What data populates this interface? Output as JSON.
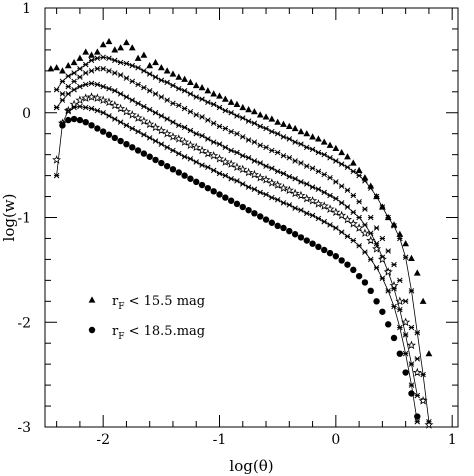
{
  "chart_data": {
    "type": "scatter",
    "xlabel": "log(θ)",
    "ylabel": "log(w)",
    "xlim": [
      -2.5,
      1.05
    ],
    "ylim": [
      -3,
      1
    ],
    "x_ticks": [
      "-2",
      "-1",
      "0",
      "1"
    ],
    "y_ticks": [
      "1",
      "0",
      "-1",
      "-2",
      "-3"
    ],
    "grid": false,
    "legend_position": "lower-left",
    "legend": [
      {
        "marker": "triangle",
        "label": "r<sub>F</sub> < 15.5 mag",
        "text_main": "r",
        "text_sub": "F",
        "text_rest": " < 15.5 mag"
      },
      {
        "marker": "circle",
        "label": "r<sub>F</sub> < 18.5.mag",
        "text_main": "r",
        "text_sub": "F",
        "text_rest": " < 18.5.mag"
      }
    ],
    "series": [
      {
        "marker": "triangle",
        "line": false,
        "x": [
          -2.45,
          -2.4,
          -2.35,
          -2.3,
          -2.25,
          -2.2,
          -2.15,
          -2.1,
          -2.05,
          -2.0,
          -1.95,
          -1.9,
          -1.85,
          -1.8,
          -1.75,
          -1.7,
          -1.65,
          -1.6,
          -1.55,
          -1.5,
          -1.45,
          -1.4,
          -1.35,
          -1.3,
          -1.25,
          -1.2,
          -1.15,
          -1.1,
          -1.05,
          -1.0,
          -0.95,
          -0.9,
          -0.85,
          -0.8,
          -0.75,
          -0.7,
          -0.65,
          -0.6,
          -0.55,
          -0.5,
          -0.45,
          -0.4,
          -0.35,
          -0.3,
          -0.25,
          -0.2,
          -0.15,
          -0.1,
          -0.05,
          0.0,
          0.05,
          0.1,
          0.15,
          0.2,
          0.25,
          0.3,
          0.35,
          0.4,
          0.45,
          0.5,
          0.55,
          0.6,
          0.65,
          0.7,
          0.75,
          0.8
        ],
        "y": [
          0.42,
          0.43,
          0.4,
          0.45,
          0.48,
          0.52,
          0.58,
          0.55,
          0.58,
          0.65,
          0.68,
          0.6,
          0.62,
          0.67,
          0.62,
          0.52,
          0.55,
          0.45,
          0.48,
          0.43,
          0.4,
          0.37,
          0.34,
          0.32,
          0.29,
          0.26,
          0.24,
          0.21,
          0.18,
          0.16,
          0.13,
          0.1,
          0.08,
          0.05,
          0.03,
          0.01,
          -0.02,
          -0.04,
          -0.06,
          -0.09,
          -0.11,
          -0.13,
          -0.15,
          -0.18,
          -0.2,
          -0.23,
          -0.25,
          -0.28,
          -0.31,
          -0.34,
          -0.38,
          -0.42,
          -0.48,
          -0.55,
          -0.62,
          -0.7,
          -0.8,
          -0.9,
          -1.0,
          -1.07,
          -1.16,
          -1.25,
          -1.39,
          -1.53,
          -1.8,
          -2.3
        ]
      },
      {
        "marker": "cross",
        "line": true,
        "x": [
          -2.4,
          -2.35,
          -2.3,
          -2.25,
          -2.2,
          -2.15,
          -2.1,
          -2.05,
          -2.0,
          -1.95,
          -1.9,
          -1.85,
          -1.8,
          -1.75,
          -1.7,
          -1.65,
          -1.6,
          -1.55,
          -1.5,
          -1.45,
          -1.4,
          -1.35,
          -1.3,
          -1.25,
          -1.2,
          -1.15,
          -1.1,
          -1.05,
          -1.0,
          -0.95,
          -0.9,
          -0.85,
          -0.8,
          -0.75,
          -0.7,
          -0.65,
          -0.6,
          -0.55,
          -0.5,
          -0.45,
          -0.4,
          -0.35,
          -0.3,
          -0.25,
          -0.2,
          -0.15,
          -0.1,
          -0.05,
          0.0,
          0.05,
          0.1,
          0.15,
          0.2,
          0.25,
          0.3,
          0.35,
          0.4,
          0.45,
          0.5,
          0.55,
          0.6,
          0.65,
          0.7,
          0.75,
          0.8
        ],
        "y": [
          0.22,
          0.3,
          0.35,
          0.38,
          0.42,
          0.46,
          0.5,
          0.52,
          0.53,
          0.52,
          0.5,
          0.48,
          0.47,
          0.45,
          0.43,
          0.4,
          0.37,
          0.34,
          0.31,
          0.29,
          0.26,
          0.23,
          0.21,
          0.18,
          0.15,
          0.13,
          0.1,
          0.08,
          0.05,
          0.02,
          0.0,
          -0.03,
          -0.05,
          -0.08,
          -0.1,
          -0.13,
          -0.15,
          -0.18,
          -0.2,
          -0.23,
          -0.25,
          -0.28,
          -0.3,
          -0.33,
          -0.35,
          -0.38,
          -0.4,
          -0.43,
          -0.46,
          -0.49,
          -0.52,
          -0.56,
          -0.6,
          -0.65,
          -0.72,
          -0.8,
          -0.9,
          -1.0,
          -1.08,
          -1.2,
          -1.38,
          -1.7,
          -2.1,
          -2.5,
          -2.95
        ]
      },
      {
        "marker": "cross",
        "line": false,
        "x": [
          -2.4,
          -2.35,
          -2.3,
          -2.25,
          -2.2,
          -2.15,
          -2.1,
          -2.05,
          -2.0,
          -1.95,
          -1.9,
          -1.85,
          -1.8,
          -1.75,
          -1.7,
          -1.65,
          -1.6,
          -1.55,
          -1.5,
          -1.45,
          -1.4,
          -1.35,
          -1.3,
          -1.25,
          -1.2,
          -1.15,
          -1.1,
          -1.05,
          -1.0,
          -0.95,
          -0.9,
          -0.85,
          -0.8,
          -0.75,
          -0.7,
          -0.65,
          -0.6,
          -0.55,
          -0.5,
          -0.45,
          -0.4,
          -0.35,
          -0.3,
          -0.25,
          -0.2,
          -0.15,
          -0.1,
          -0.05,
          0.0,
          0.05,
          0.1,
          0.15,
          0.2,
          0.25,
          0.3,
          0.35,
          0.4,
          0.45,
          0.5,
          0.55,
          0.6,
          0.65,
          0.7,
          0.75
        ],
        "y": [
          0.05,
          0.18,
          0.25,
          0.3,
          0.34,
          0.38,
          0.4,
          0.42,
          0.42,
          0.4,
          0.38,
          0.36,
          0.33,
          0.3,
          0.27,
          0.24,
          0.21,
          0.18,
          0.15,
          0.12,
          0.09,
          0.07,
          0.04,
          0.01,
          -0.02,
          -0.04,
          -0.07,
          -0.1,
          -0.13,
          -0.15,
          -0.18,
          -0.2,
          -0.23,
          -0.26,
          -0.28,
          -0.31,
          -0.33,
          -0.36,
          -0.38,
          -0.41,
          -0.43,
          -0.46,
          -0.48,
          -0.51,
          -0.53,
          -0.56,
          -0.59,
          -0.62,
          -0.66,
          -0.7,
          -0.74,
          -0.79,
          -0.85,
          -0.92,
          -1.0,
          -1.1,
          -1.2,
          -1.32,
          -1.45,
          -1.6,
          -1.8,
          -2.05,
          -2.35,
          -2.75
        ]
      },
      {
        "marker": "cross",
        "line": true,
        "x": [
          -2.4,
          -2.35,
          -2.3,
          -2.25,
          -2.2,
          -2.15,
          -2.1,
          -2.05,
          -2.0,
          -1.95,
          -1.9,
          -1.85,
          -1.8,
          -1.75,
          -1.7,
          -1.65,
          -1.6,
          -1.55,
          -1.5,
          -1.45,
          -1.4,
          -1.35,
          -1.3,
          -1.25,
          -1.2,
          -1.15,
          -1.1,
          -1.05,
          -1.0,
          -0.95,
          -0.9,
          -0.85,
          -0.8,
          -0.75,
          -0.7,
          -0.65,
          -0.6,
          -0.55,
          -0.5,
          -0.45,
          -0.4,
          -0.35,
          -0.3,
          -0.25,
          -0.2,
          -0.15,
          -0.1,
          -0.05,
          0.0,
          0.05,
          0.1,
          0.15,
          0.2,
          0.25,
          0.3,
          0.35,
          0.4,
          0.45,
          0.5,
          0.55,
          0.6,
          0.65,
          0.7
        ],
        "y": [
          0.05,
          0.12,
          0.18,
          0.22,
          0.25,
          0.27,
          0.28,
          0.27,
          0.25,
          0.23,
          0.21,
          0.18,
          0.15,
          0.12,
          0.09,
          0.06,
          0.03,
          0.0,
          -0.03,
          -0.06,
          -0.09,
          -0.12,
          -0.14,
          -0.17,
          -0.2,
          -0.22,
          -0.25,
          -0.28,
          -0.3,
          -0.33,
          -0.36,
          -0.38,
          -0.41,
          -0.43,
          -0.46,
          -0.48,
          -0.51,
          -0.53,
          -0.56,
          -0.58,
          -0.61,
          -0.63,
          -0.66,
          -0.68,
          -0.71,
          -0.73,
          -0.76,
          -0.79,
          -0.82,
          -0.86,
          -0.9,
          -0.95,
          -1.0,
          -1.07,
          -1.15,
          -1.25,
          -1.38,
          -1.52,
          -1.68,
          -1.88,
          -2.12,
          -2.4,
          -2.7
        ]
      },
      {
        "marker": "star",
        "line": false,
        "x": [
          -2.4,
          -2.35,
          -2.3,
          -2.25,
          -2.2,
          -2.15,
          -2.1,
          -2.05,
          -2.0,
          -1.95,
          -1.9,
          -1.85,
          -1.8,
          -1.75,
          -1.7,
          -1.65,
          -1.6,
          -1.55,
          -1.5,
          -1.45,
          -1.4,
          -1.35,
          -1.3,
          -1.25,
          -1.2,
          -1.15,
          -1.1,
          -1.05,
          -1.0,
          -0.95,
          -0.9,
          -0.85,
          -0.8,
          -0.75,
          -0.7,
          -0.65,
          -0.6,
          -0.55,
          -0.5,
          -0.45,
          -0.4,
          -0.35,
          -0.3,
          -0.25,
          -0.2,
          -0.15,
          -0.1,
          -0.05,
          0.0,
          0.05,
          0.1,
          0.15,
          0.2,
          0.25,
          0.3,
          0.35,
          0.4,
          0.45,
          0.5,
          0.55,
          0.6,
          0.65,
          0.7,
          0.75,
          0.8
        ],
        "y": [
          -0.45,
          -0.1,
          0.02,
          0.08,
          0.12,
          0.14,
          0.15,
          0.14,
          0.12,
          0.1,
          0.07,
          0.04,
          0.01,
          -0.02,
          -0.05,
          -0.08,
          -0.11,
          -0.14,
          -0.17,
          -0.2,
          -0.23,
          -0.25,
          -0.28,
          -0.31,
          -0.33,
          -0.36,
          -0.39,
          -0.41,
          -0.44,
          -0.47,
          -0.49,
          -0.52,
          -0.54,
          -0.57,
          -0.59,
          -0.62,
          -0.64,
          -0.67,
          -0.69,
          -0.72,
          -0.74,
          -0.77,
          -0.79,
          -0.82,
          -0.84,
          -0.87,
          -0.89,
          -0.92,
          -0.95,
          -0.98,
          -1.02,
          -1.06,
          -1.1,
          -1.15,
          -1.22,
          -1.3,
          -1.4,
          -1.52,
          -1.65,
          -1.8,
          -2.0,
          -2.22,
          -2.48,
          -2.75,
          -2.98
        ]
      },
      {
        "marker": "cross",
        "line": true,
        "x": [
          -2.4,
          -2.35,
          -2.3,
          -2.25,
          -2.2,
          -2.15,
          -2.1,
          -2.05,
          -2.0,
          -1.95,
          -1.9,
          -1.85,
          -1.8,
          -1.75,
          -1.7,
          -1.65,
          -1.6,
          -1.55,
          -1.5,
          -1.45,
          -1.4,
          -1.35,
          -1.3,
          -1.25,
          -1.2,
          -1.15,
          -1.1,
          -1.05,
          -1.0,
          -0.95,
          -0.9,
          -0.85,
          -0.8,
          -0.75,
          -0.7,
          -0.65,
          -0.6,
          -0.55,
          -0.5,
          -0.45,
          -0.4,
          -0.35,
          -0.3,
          -0.25,
          -0.2,
          -0.15,
          -0.1,
          -0.05,
          0.0,
          0.05,
          0.1,
          0.15,
          0.2,
          0.25,
          0.3,
          0.35,
          0.4,
          0.45,
          0.5,
          0.55,
          0.6,
          0.65,
          0.7
        ],
        "y": [
          -0.6,
          -0.1,
          0.02,
          0.05,
          0.06,
          0.05,
          0.04,
          0.02,
          0.0,
          -0.03,
          -0.06,
          -0.09,
          -0.12,
          -0.15,
          -0.18,
          -0.21,
          -0.24,
          -0.27,
          -0.3,
          -0.33,
          -0.36,
          -0.39,
          -0.42,
          -0.44,
          -0.47,
          -0.5,
          -0.52,
          -0.55,
          -0.58,
          -0.6,
          -0.63,
          -0.65,
          -0.68,
          -0.71,
          -0.73,
          -0.76,
          -0.78,
          -0.81,
          -0.83,
          -0.86,
          -0.88,
          -0.91,
          -0.93,
          -0.96,
          -0.98,
          -1.01,
          -1.04,
          -1.07,
          -1.1,
          -1.14,
          -1.18,
          -1.22,
          -1.27,
          -1.33,
          -1.4,
          -1.48,
          -1.58,
          -1.7,
          -1.85,
          -2.05,
          -2.3,
          -2.6,
          -2.95
        ]
      },
      {
        "marker": "circle",
        "line": false,
        "x": [
          -2.35,
          -2.3,
          -2.25,
          -2.2,
          -2.15,
          -2.1,
          -2.05,
          -2.0,
          -1.95,
          -1.9,
          -1.85,
          -1.8,
          -1.75,
          -1.7,
          -1.65,
          -1.6,
          -1.55,
          -1.5,
          -1.45,
          -1.4,
          -1.35,
          -1.3,
          -1.25,
          -1.2,
          -1.15,
          -1.1,
          -1.05,
          -1.0,
          -0.95,
          -0.9,
          -0.85,
          -0.8,
          -0.75,
          -0.7,
          -0.65,
          -0.6,
          -0.55,
          -0.5,
          -0.45,
          -0.4,
          -0.35,
          -0.3,
          -0.25,
          -0.2,
          -0.15,
          -0.1,
          -0.05,
          0.0,
          0.05,
          0.1,
          0.15,
          0.2,
          0.25,
          0.3,
          0.35,
          0.4,
          0.45,
          0.5,
          0.55,
          0.6,
          0.65,
          0.7
        ],
        "y": [
          -0.12,
          -0.07,
          -0.06,
          -0.07,
          -0.09,
          -0.12,
          -0.15,
          -0.18,
          -0.21,
          -0.24,
          -0.27,
          -0.3,
          -0.33,
          -0.36,
          -0.39,
          -0.42,
          -0.45,
          -0.48,
          -0.51,
          -0.54,
          -0.57,
          -0.6,
          -0.63,
          -0.66,
          -0.69,
          -0.72,
          -0.75,
          -0.78,
          -0.81,
          -0.84,
          -0.87,
          -0.9,
          -0.93,
          -0.96,
          -0.99,
          -1.02,
          -1.05,
          -1.08,
          -1.1,
          -1.13,
          -1.16,
          -1.19,
          -1.22,
          -1.25,
          -1.28,
          -1.31,
          -1.34,
          -1.37,
          -1.41,
          -1.45,
          -1.5,
          -1.56,
          -1.62,
          -1.7,
          -1.8,
          -1.9,
          -2.02,
          -2.15,
          -2.3,
          -2.48,
          -2.68,
          -2.9
        ]
      }
    ]
  }
}
